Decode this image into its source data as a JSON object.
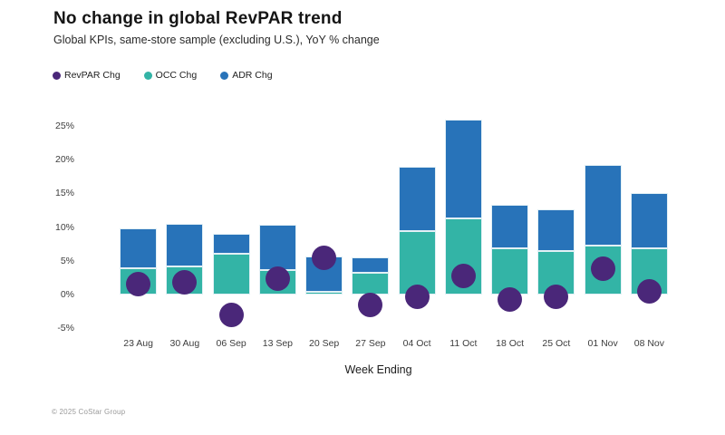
{
  "header": {
    "title": "No change in global RevPAR trend",
    "subtitle": "Global KPIs, same-store sample (excluding U.S.), YoY % change"
  },
  "legend": [
    {
      "id": "revpar-chg",
      "label": "RevPAR Chg",
      "color": "#4A2779",
      "marker": "dot"
    },
    {
      "id": "occ-chg",
      "label": "OCC Chg",
      "color": "#33B4A6",
      "marker": "dot"
    },
    {
      "id": "adr-chg",
      "label": "ADR Chg",
      "color": "#2873B9",
      "marker": "dot"
    }
  ],
  "footer": {
    "copyright": "© 2025 CoStar Group"
  },
  "colors": {
    "revpar": "#4A2779",
    "occ": "#33B4A6",
    "adr": "#2873B9",
    "background": "#ffffff",
    "tick_text": "#3d3d3d"
  },
  "chart_data": {
    "type": "stacked_bar_with_scatter",
    "title": "No change in global RevPAR trend",
    "subtitle": "Global KPIs, same-store sample (excluding U.S.), YoY % change",
    "xlabel": "Week Ending",
    "ylabel": "",
    "grid": false,
    "legend_position": "top-left",
    "ylim": [
      -6,
      27
    ],
    "yticks": [
      {
        "label": "25%",
        "value": 25
      },
      {
        "label": "20%",
        "value": 20
      },
      {
        "label": "15%",
        "value": 15
      },
      {
        "label": "10%",
        "value": 10
      },
      {
        "label": "5%",
        "value": 5
      },
      {
        "label": "0%",
        "value": 0
      },
      {
        "label": "-5%",
        "value": -5
      }
    ],
    "categories": [
      "23 Aug",
      "30 Aug",
      "06 Sep",
      "13 Sep",
      "20 Sep",
      "27 Sep",
      "04 Oct",
      "11 Oct",
      "18 Oct",
      "25 Oct",
      "01 Nov",
      "08 Nov"
    ],
    "series": [
      {
        "name": "OCC Chg",
        "type": "bar",
        "stack": true,
        "color": "#33B4A6",
        "values": [
          3.9,
          4.1,
          6.0,
          3.6,
          0.4,
          3.2,
          9.4,
          11.3,
          6.9,
          6.4,
          7.3,
          6.9
        ]
      },
      {
        "name": "ADR Chg",
        "type": "bar",
        "stack": true,
        "color": "#2873B9",
        "values": [
          5.9,
          6.4,
          3.0,
          6.7,
          5.2,
          2.3,
          9.5,
          14.6,
          6.4,
          6.3,
          11.9,
          8.1
        ]
      },
      {
        "name": "RevPAR Chg",
        "type": "scatter",
        "color": "#4A2779",
        "values": [
          1.5,
          1.8,
          -3.0,
          2.3,
          5.5,
          -1.5,
          -0.4,
          2.7,
          -0.7,
          -0.4,
          3.8,
          0.5
        ]
      }
    ]
  }
}
